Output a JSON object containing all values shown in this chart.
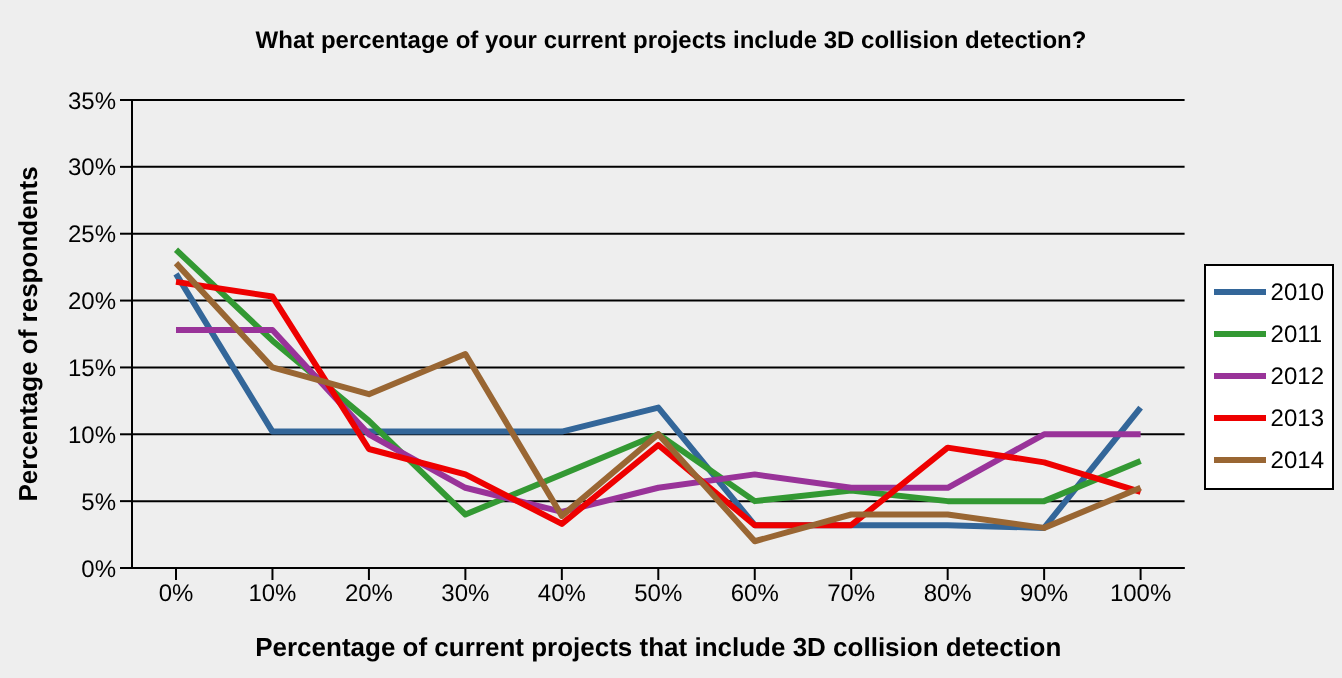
{
  "chart_data": {
    "type": "line",
    "title": "What percentage of your current projects include 3D collision detection?",
    "xlabel": "Percentage of current projects that include 3D collision detection",
    "ylabel": "Percentage of respondents",
    "categories": [
      "0%",
      "10%",
      "20%",
      "30%",
      "40%",
      "50%",
      "60%",
      "70%",
      "80%",
      "90%",
      "100%"
    ],
    "series": [
      {
        "name": "2010",
        "color": "#336699",
        "values": [
          22,
          10.2,
          10.2,
          10.2,
          10.2,
          12,
          3.2,
          3.2,
          3.2,
          3,
          12
        ]
      },
      {
        "name": "2011",
        "color": "#339933",
        "values": [
          23.8,
          17,
          11,
          4,
          7,
          10,
          5,
          5.8,
          5,
          5,
          8
        ]
      },
      {
        "name": "2012",
        "color": "#993399",
        "values": [
          17.8,
          17.8,
          10,
          6,
          4.2,
          6,
          7,
          6,
          6,
          10,
          10
        ]
      },
      {
        "name": "2013",
        "color": "#ee0000",
        "values": [
          21.4,
          20.3,
          8.9,
          7,
          3.3,
          9.2,
          3.2,
          3.2,
          9,
          7.9,
          5.7
        ]
      },
      {
        "name": "2014",
        "color": "#996633",
        "values": [
          22.8,
          15,
          13,
          16,
          3.9,
          10,
          2,
          4,
          4,
          3,
          6
        ]
      }
    ],
    "ylim": [
      0,
      35
    ],
    "yticks": [
      {
        "value": 0,
        "label": "0%"
      },
      {
        "value": 5,
        "label": "5%"
      },
      {
        "value": 10,
        "label": "10%"
      },
      {
        "value": 15,
        "label": "15%"
      },
      {
        "value": 20,
        "label": "20%"
      },
      {
        "value": 25,
        "label": "25%"
      },
      {
        "value": 30,
        "label": "30%"
      },
      {
        "value": 35,
        "label": "35%"
      }
    ],
    "grid": "y",
    "legend": "right",
    "marker": "none",
    "line_style": "solid"
  }
}
